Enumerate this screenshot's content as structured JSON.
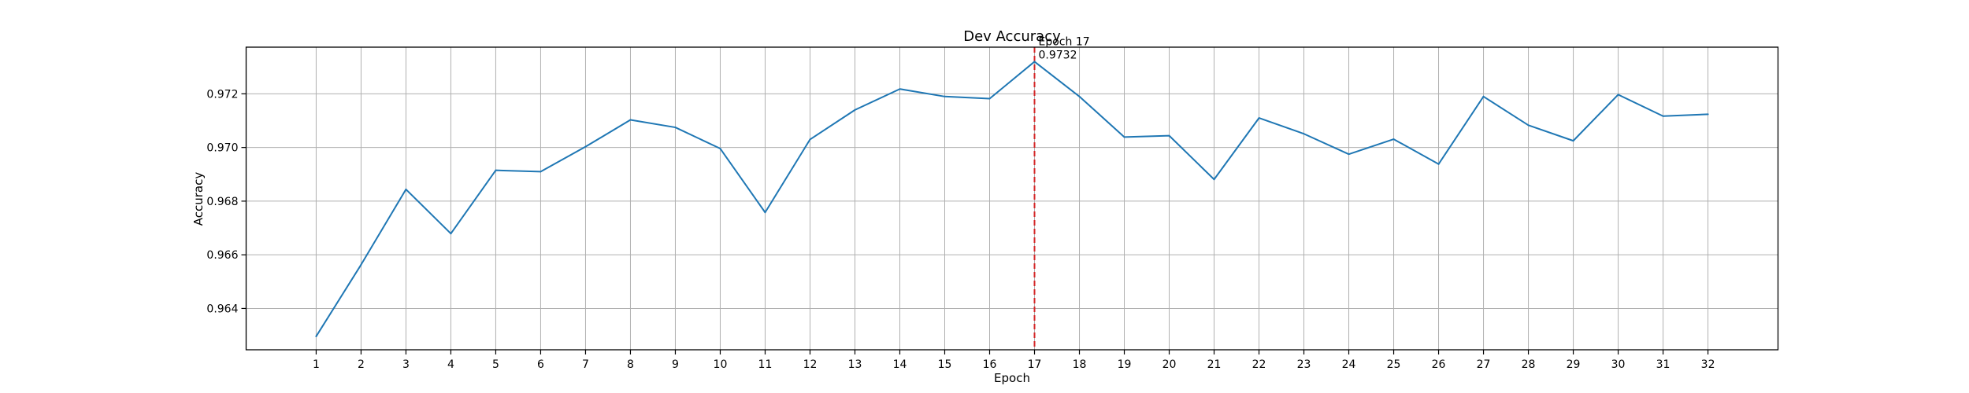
{
  "chart_data": {
    "type": "line",
    "title": "Dev Accuracy",
    "xlabel": "Epoch",
    "ylabel": "Accuracy",
    "xlim": [
      -0.56,
      33.56
    ],
    "ylim": [
      0.96246,
      0.97374
    ],
    "grid": true,
    "x_ticks": [
      1,
      2,
      3,
      4,
      5,
      6,
      7,
      8,
      9,
      10,
      11,
      12,
      13,
      14,
      15,
      16,
      17,
      18,
      19,
      20,
      21,
      22,
      23,
      24,
      25,
      26,
      27,
      28,
      29,
      30,
      31,
      32
    ],
    "y_ticks": [
      0.964,
      0.966,
      0.968,
      0.97,
      0.972
    ],
    "y_tick_labels": [
      "0.964",
      "0.966",
      "0.968",
      "0.970",
      "0.972"
    ],
    "series": [
      {
        "color": "#1f77b4",
        "x": [
          1,
          2,
          3,
          4,
          5,
          6,
          7,
          8,
          9,
          10,
          11,
          12,
          13,
          14,
          15,
          16,
          17,
          18,
          19,
          20,
          21,
          22,
          23,
          24,
          25,
          26,
          27,
          28,
          29,
          30,
          31,
          32
        ],
        "y": [
          0.96296,
          0.96563,
          0.96844,
          0.96679,
          0.96915,
          0.9691,
          0.97003,
          0.97103,
          0.97075,
          0.96996,
          0.96758,
          0.9703,
          0.9714,
          0.97218,
          0.9719,
          0.97182,
          0.9732,
          0.9719,
          0.97039,
          0.97044,
          0.96881,
          0.9711,
          0.97051,
          0.96975,
          0.97031,
          0.96938,
          0.9719,
          0.97083,
          0.97025,
          0.97197,
          0.97117,
          0.97124
        ]
      }
    ],
    "annotation": {
      "x": 17,
      "y": 0.9732,
      "line_color": "#d62728",
      "label_line1": "Epoch 17",
      "label_line2": "0.9732"
    }
  }
}
